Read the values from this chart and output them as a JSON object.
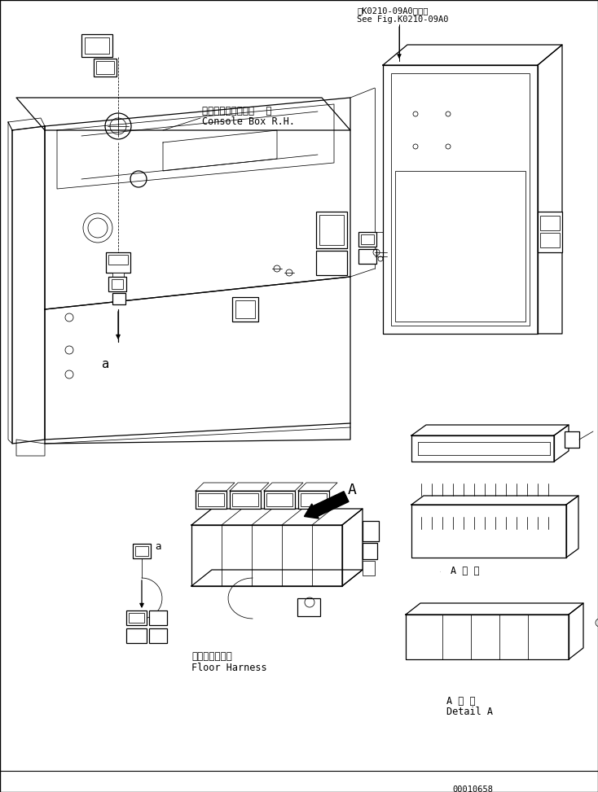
{
  "bg_color": "#ffffff",
  "line_color": "#000000",
  "title_top_line1": "第K0210-09A0図参照",
  "title_top_line2": "See Fig.K0210-09A0",
  "label_console": "コンソールボックス  右",
  "label_console2": "Console Box R.H.",
  "label_floor": "フロアハーネス",
  "label_floor2": "Floor Harness",
  "label_detail_jp": "A 詳 細",
  "label_detail_en": "Detail A",
  "label_A": "A",
  "label_a1": "a",
  "label_a2": "a",
  "part_number": "00010658",
  "font_size_small": 7.5,
  "font_size_label": 8.5,
  "font_size_A": 13
}
